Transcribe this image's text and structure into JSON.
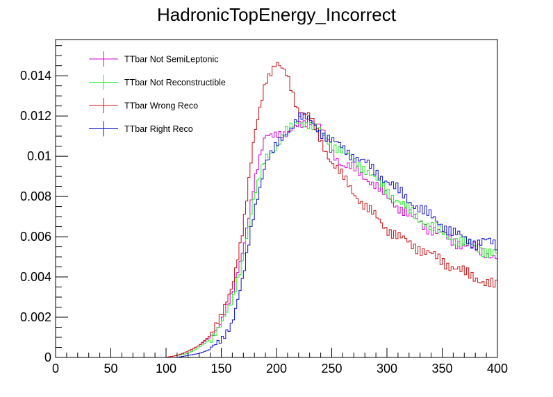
{
  "chart_data": {
    "type": "line",
    "title": "HadronicTopEnergy_Incorrect",
    "xlabel": "",
    "ylabel": "",
    "xlim": [
      0,
      400
    ],
    "ylim": [
      0,
      0.0158
    ],
    "x_ticks": [
      "0",
      "50",
      "100",
      "150",
      "200",
      "250",
      "300",
      "350",
      "400"
    ],
    "y_ticks": [
      "0",
      "0.002",
      "0.004",
      "0.006",
      "0.008",
      "0.01",
      "0.012",
      "0.014"
    ],
    "legend_placement": "top-left",
    "grid": false,
    "bin_width": 2,
    "series": [
      {
        "name": "TTbar Not SemiLeptonic",
        "color": "#d400d4",
        "x": [
          0,
          100,
          110,
          120,
          130,
          140,
          150,
          160,
          170,
          180,
          190,
          200,
          210,
          220,
          230,
          240,
          250,
          260,
          270,
          280,
          290,
          300,
          310,
          320,
          330,
          340,
          350,
          360,
          370,
          380,
          390,
          400
        ],
        "y": [
          0,
          0,
          0.0001,
          0.0003,
          0.0006,
          0.001,
          0.0018,
          0.0031,
          0.0055,
          0.0087,
          0.011,
          0.0112,
          0.011,
          0.0116,
          0.0118,
          0.0114,
          0.0103,
          0.0095,
          0.0094,
          0.009,
          0.0085,
          0.008,
          0.0075,
          0.0071,
          0.0067,
          0.0064,
          0.0061,
          0.0058,
          0.0056,
          0.0054,
          0.0052,
          0.005
        ]
      },
      {
        "name": "TTbar Not Reconstructible",
        "color": "#22ee22",
        "x": [
          0,
          100,
          110,
          120,
          130,
          140,
          150,
          160,
          170,
          180,
          190,
          200,
          210,
          220,
          230,
          240,
          250,
          260,
          270,
          280,
          290,
          300,
          310,
          320,
          330,
          340,
          350,
          360,
          370,
          380,
          390,
          400
        ],
        "y": [
          0,
          0,
          0.0001,
          0.0002,
          0.0005,
          0.0009,
          0.0016,
          0.0028,
          0.005,
          0.008,
          0.01,
          0.0104,
          0.0113,
          0.0118,
          0.0115,
          0.0112,
          0.0106,
          0.0102,
          0.0098,
          0.0094,
          0.0088,
          0.0083,
          0.0078,
          0.0073,
          0.0069,
          0.0065,
          0.0062,
          0.0059,
          0.0057,
          0.0055,
          0.0053,
          0.0051
        ]
      },
      {
        "name": "TTbar Wrong Reco",
        "color": "#cc1111",
        "x": [
          0,
          100,
          110,
          120,
          130,
          140,
          150,
          160,
          170,
          180,
          190,
          200,
          210,
          220,
          230,
          240,
          250,
          260,
          270,
          280,
          290,
          300,
          310,
          320,
          330,
          340,
          350,
          360,
          370,
          380,
          390,
          400
        ],
        "y": [
          0,
          0,
          0.0001,
          0.0003,
          0.0006,
          0.0011,
          0.002,
          0.0036,
          0.0065,
          0.011,
          0.0138,
          0.0146,
          0.014,
          0.0122,
          0.012,
          0.0108,
          0.0097,
          0.009,
          0.0082,
          0.0075,
          0.007,
          0.0064,
          0.006,
          0.0057,
          0.0054,
          0.0051,
          0.0048,
          0.0045,
          0.0042,
          0.004,
          0.0037,
          0.0035
        ]
      },
      {
        "name": "TTbar Right Reco",
        "color": "#1111cc",
        "x": [
          0,
          100,
          110,
          120,
          130,
          140,
          150,
          160,
          170,
          180,
          190,
          200,
          210,
          220,
          230,
          240,
          250,
          260,
          270,
          280,
          290,
          300,
          310,
          320,
          330,
          340,
          350,
          360,
          370,
          380,
          390,
          400
        ],
        "y": [
          0,
          0,
          0,
          0.0001,
          0.0002,
          0.0004,
          0.0008,
          0.0018,
          0.004,
          0.0073,
          0.0097,
          0.0105,
          0.0112,
          0.012,
          0.0118,
          0.0112,
          0.0108,
          0.0104,
          0.01,
          0.0097,
          0.0092,
          0.0088,
          0.0083,
          0.0078,
          0.0074,
          0.007,
          0.0066,
          0.0062,
          0.0059,
          0.0057,
          0.0058,
          0.0055
        ]
      }
    ]
  }
}
